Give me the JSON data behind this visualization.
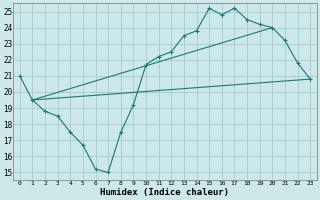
{
  "xlabel": "Humidex (Indice chaleur)",
  "bg_color": "#cce8e8",
  "line_color": "#1a7a6e",
  "grid_color": "#aacfcf",
  "xlim": [
    -0.5,
    23.5
  ],
  "ylim": [
    14.5,
    25.5
  ],
  "xticks": [
    0,
    1,
    2,
    3,
    4,
    5,
    6,
    7,
    8,
    9,
    10,
    11,
    12,
    13,
    14,
    15,
    16,
    17,
    18,
    19,
    20,
    21,
    22,
    23
  ],
  "yticks": [
    15,
    16,
    17,
    18,
    19,
    20,
    21,
    22,
    23,
    24,
    25
  ],
  "curve1_x": [
    0,
    1,
    2,
    3,
    4,
    5,
    6,
    7,
    8,
    9,
    10,
    11,
    12,
    13,
    14,
    15,
    16,
    17,
    18,
    19,
    20,
    21,
    22,
    23
  ],
  "curve1_y": [
    21.0,
    19.5,
    18.8,
    18.5,
    17.5,
    16.7,
    15.2,
    15.0,
    17.5,
    19.2,
    21.7,
    22.2,
    22.5,
    23.5,
    23.8,
    25.2,
    24.8,
    25.2,
    24.5,
    24.2,
    24.0,
    23.2,
    21.8,
    20.8
  ],
  "curve2_x": [
    1,
    23
  ],
  "curve2_y": [
    19.5,
    20.8
  ],
  "curve3_x": [
    1,
    20
  ],
  "curve3_y": [
    19.5,
    24.0
  ]
}
